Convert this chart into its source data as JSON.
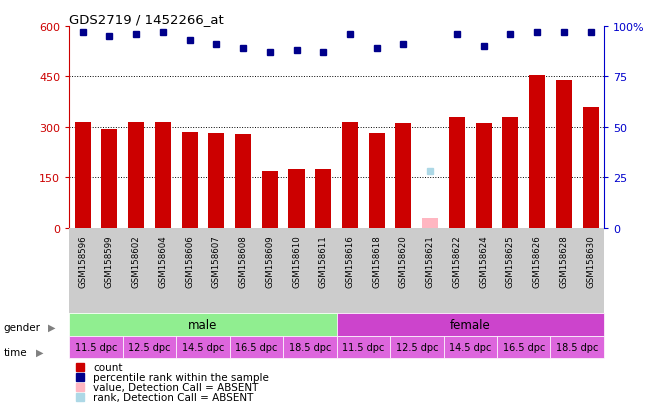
{
  "title": "GDS2719 / 1452266_at",
  "samples": [
    "GSM158596",
    "GSM158599",
    "GSM158602",
    "GSM158604",
    "GSM158606",
    "GSM158607",
    "GSM158608",
    "GSM158609",
    "GSM158610",
    "GSM158611",
    "GSM158616",
    "GSM158618",
    "GSM158620",
    "GSM158621",
    "GSM158622",
    "GSM158624",
    "GSM158625",
    "GSM158626",
    "GSM158628",
    "GSM158630"
  ],
  "bar_values": [
    315,
    295,
    315,
    315,
    285,
    282,
    278,
    168,
    175,
    175,
    315,
    283,
    310,
    null,
    330,
    310,
    330,
    455,
    440,
    360
  ],
  "bar_absent_value": 30,
  "bar_absent_index": 13,
  "rank_values": [
    97,
    95,
    96,
    97,
    93,
    91,
    89,
    87,
    88,
    87,
    96,
    89,
    91,
    null,
    96,
    90,
    96,
    97,
    97,
    97
  ],
  "rank_absent_value": 28,
  "rank_absent_index": 13,
  "ylim_left": [
    0,
    600
  ],
  "ylim_right": [
    0,
    100
  ],
  "yticks_left": [
    0,
    150,
    300,
    450,
    600
  ],
  "yticks_right": [
    0,
    25,
    50,
    75,
    100
  ],
  "ytick_labels_left": [
    "0",
    "150",
    "300",
    "450",
    "600"
  ],
  "ytick_labels_right": [
    "0",
    "25",
    "50",
    "75",
    "100%"
  ],
  "bar_color": "#CC0000",
  "bar_absent_color": "#FFB6C1",
  "rank_color": "#00008B",
  "rank_absent_color": "#ADD8E6",
  "grid_color": "#000000",
  "bg_color": "#FFFFFF",
  "xlabel_bg": "#CCCCCC",
  "male_color": "#90EE90",
  "female_color": "#CC44CC",
  "time_color": "#DD66DD",
  "time_male": [
    "11.5 dpc",
    "12.5 dpc",
    "14.5 dpc",
    "16.5 dpc",
    "18.5 dpc"
  ],
  "time_female": [
    "11.5 dpc",
    "12.5 dpc",
    "14.5 dpc",
    "16.5 dpc",
    "18.5 dpc"
  ],
  "axis_label_color_left": "#CC0000",
  "axis_label_color_right": "#0000CC",
  "legend_items": [
    {
      "color": "#CC0000",
      "label": "count"
    },
    {
      "color": "#00008B",
      "label": "percentile rank within the sample"
    },
    {
      "color": "#FFB6C1",
      "label": "value, Detection Call = ABSENT"
    },
    {
      "color": "#ADD8E6",
      "label": "rank, Detection Call = ABSENT"
    }
  ]
}
